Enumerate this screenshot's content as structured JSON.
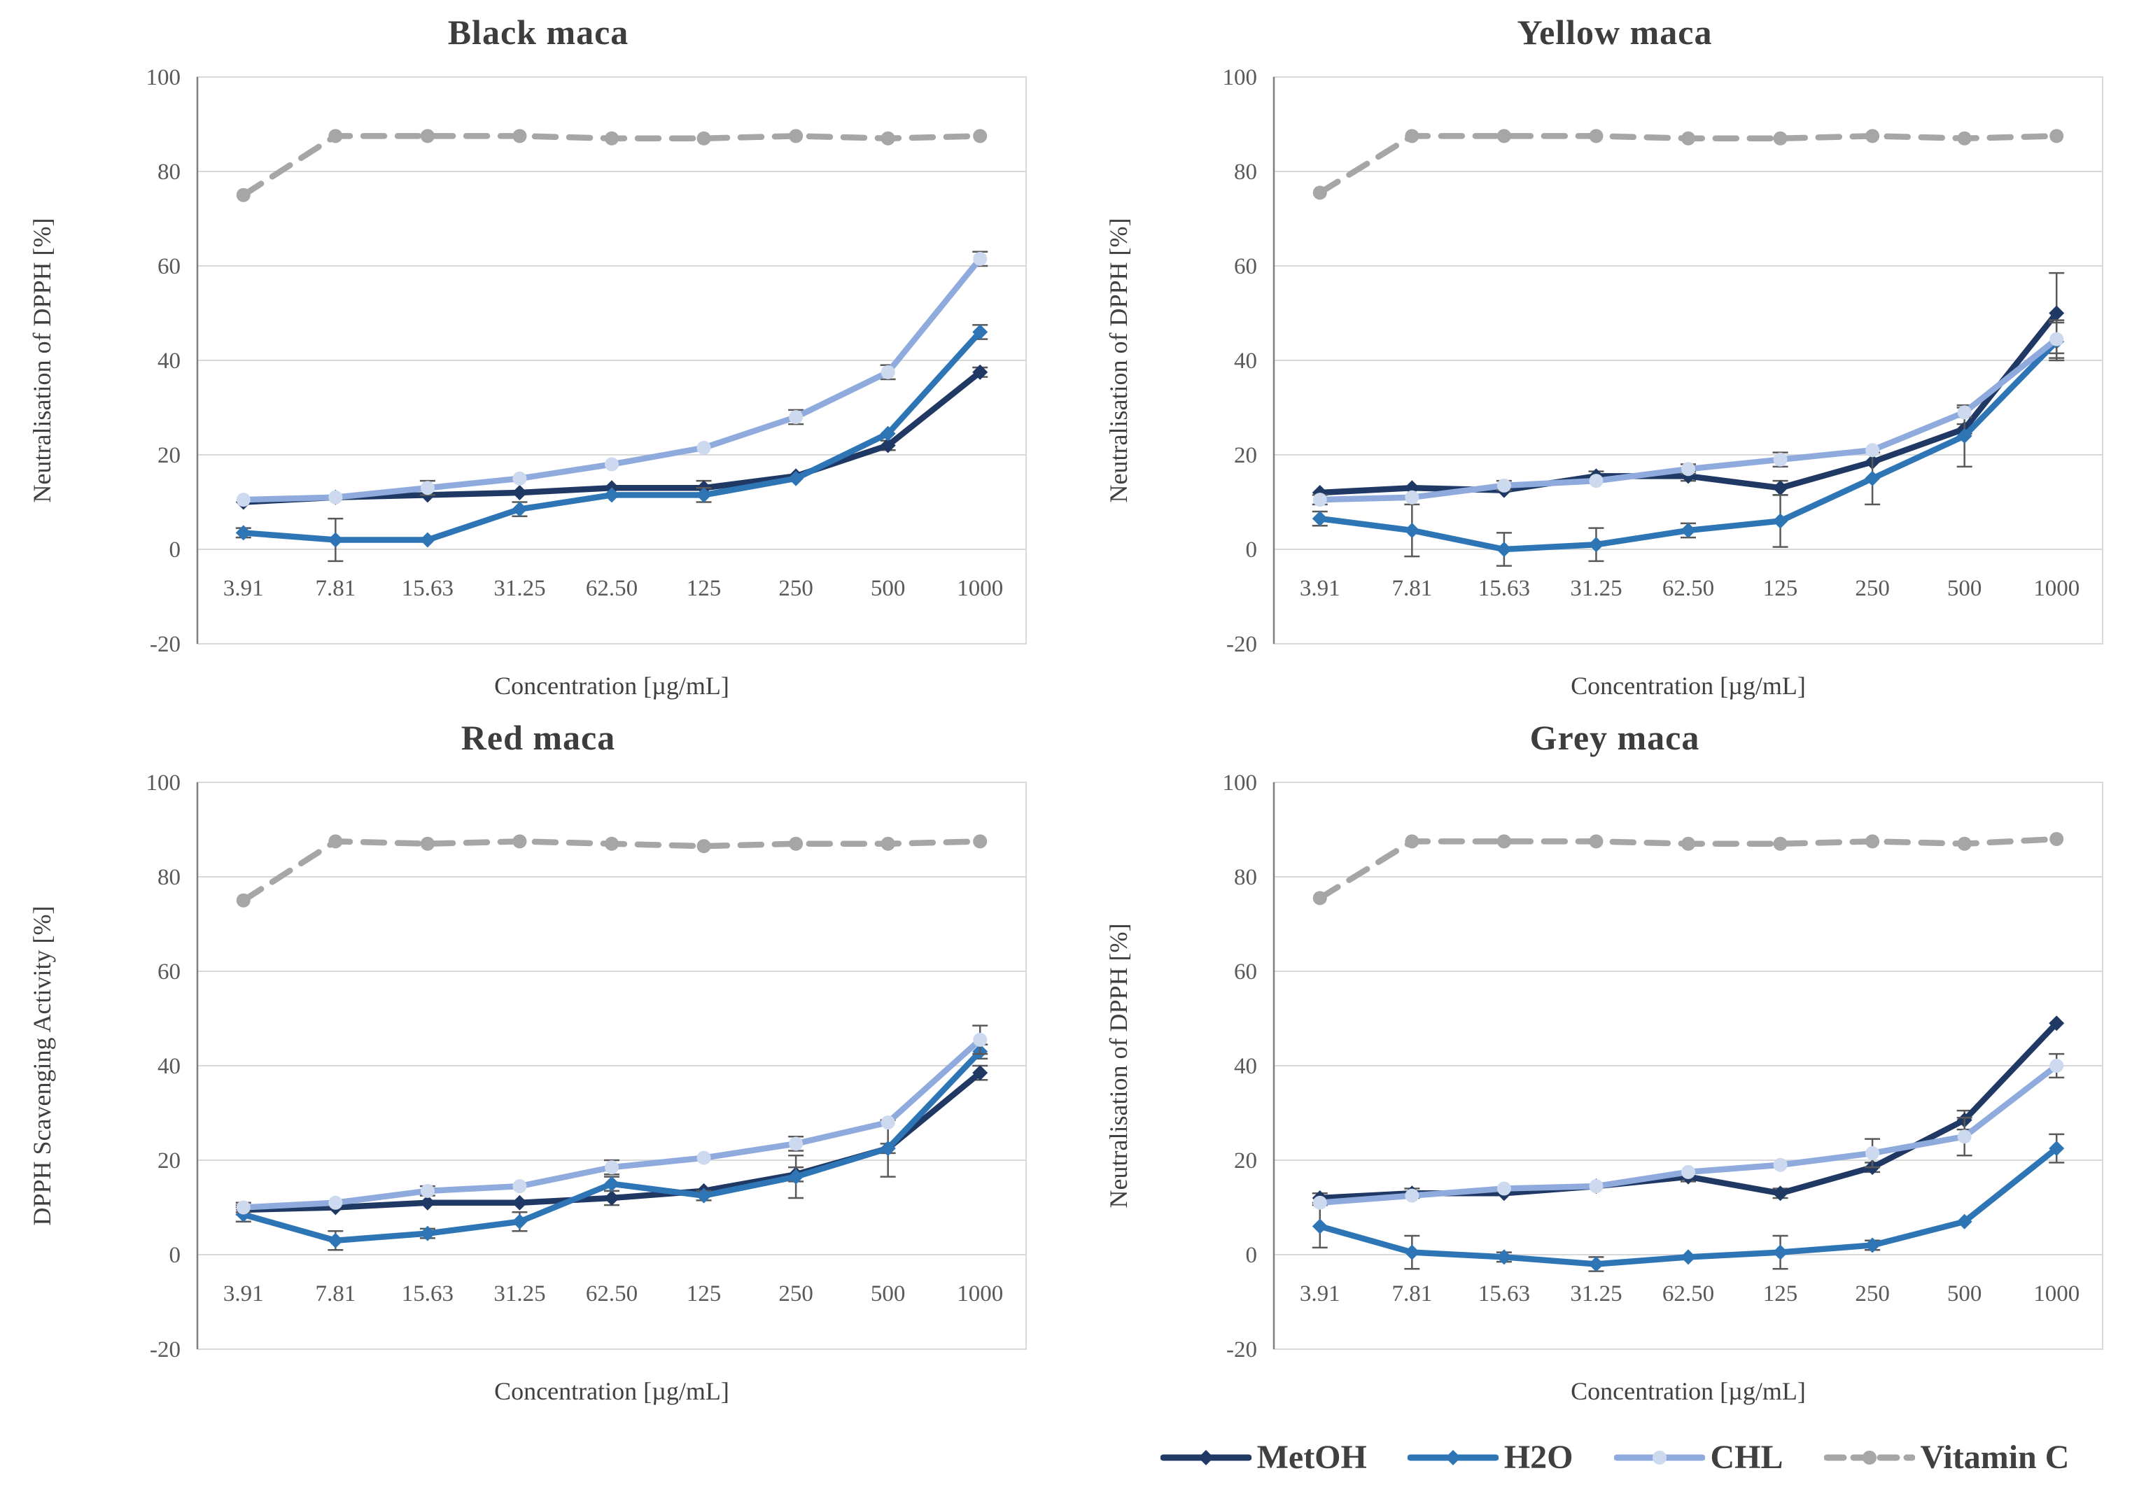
{
  "figure": {
    "background": "#ffffff",
    "shared_x_label": "Concentration [µg/mL]",
    "concentrations": [
      "3.91",
      "7.81",
      "15.63",
      "31.25",
      "62.50",
      "125",
      "250",
      "500",
      "1000"
    ]
  },
  "colors": {
    "metoh": "#1f3864",
    "h2o": "#2e75b6",
    "chl": "#8faadc",
    "chl_marker": "#cdd9ee",
    "vitamin_c": "#a6a6a6",
    "gridline": "#d9d9d9",
    "axis_line": "#7f7f7f",
    "tick_text": "#595959",
    "label_text": "#404040",
    "error_bar": "#595959"
  },
  "legend": {
    "items": [
      {
        "label": "MetOH",
        "color": "#1f3864",
        "dashed": false,
        "marker": "diamond"
      },
      {
        "label": "H2O",
        "color": "#2e75b6",
        "dashed": false,
        "marker": "diamond"
      },
      {
        "label": "CHL",
        "color": "#8faadc",
        "dashed": false,
        "marker": "circle"
      },
      {
        "label": "Vitamin C",
        "color": "#a6a6a6",
        "dashed": true,
        "marker": "circle"
      }
    ]
  },
  "chart_data": [
    {
      "id": "black-maca",
      "type": "line",
      "title": "Black maca",
      "xlabel": "Concentration [µg/mL]",
      "ylabel": "Neutralisation of DPPH [%]",
      "categories": [
        "3.91",
        "7.81",
        "15.63",
        "31.25",
        "62.50",
        "125",
        "250",
        "500",
        "1000"
      ],
      "ylim": [
        -20,
        100
      ],
      "yticks": [
        100,
        80,
        60,
        40,
        20,
        0,
        -20
      ],
      "grid": true,
      "series": [
        {
          "name": "MetOH",
          "color": "#1f3864",
          "marker": "diamond",
          "dashed": false,
          "values": [
            10,
            11,
            11.5,
            12,
            13,
            13,
            15.5,
            22,
            37.5
          ],
          "errors": [
            0.5,
            0.5,
            0.5,
            0.5,
            0.5,
            1.5,
            0.5,
            1,
            1
          ]
        },
        {
          "name": "H2O",
          "color": "#2e75b6",
          "marker": "diamond",
          "dashed": false,
          "values": [
            3.5,
            2,
            2,
            8.5,
            11.5,
            11.5,
            15,
            24.5,
            46
          ],
          "errors": [
            1,
            4.5,
            0.5,
            1.5,
            0.5,
            1.5,
            0.5,
            0.5,
            1.5
          ]
        },
        {
          "name": "CHL",
          "color": "#8faadc",
          "marker": "circle",
          "dashed": false,
          "values": [
            10.5,
            11,
            13,
            15,
            18,
            21.5,
            28,
            37.5,
            61.5
          ],
          "errors": [
            0.5,
            0.5,
            1.5,
            0.5,
            0.5,
            0.5,
            1.5,
            1.5,
            1.5
          ]
        },
        {
          "name": "Vitamin C",
          "color": "#a6a6a6",
          "marker": "circle",
          "dashed": true,
          "values": [
            75,
            87.5,
            87.5,
            87.5,
            87,
            87,
            87.5,
            87,
            87.5
          ],
          "errors": null
        }
      ]
    },
    {
      "id": "yellow-maca",
      "type": "line",
      "title": "Yellow maca",
      "xlabel": "Concentration [µg/mL]",
      "ylabel": "Neutralisation of DPPH [%]",
      "categories": [
        "3.91",
        "7.81",
        "15.63",
        "31.25",
        "62.50",
        "125",
        "250",
        "500",
        "1000"
      ],
      "ylim": [
        -20,
        100
      ],
      "yticks": [
        100,
        80,
        60,
        40,
        20,
        0,
        -20
      ],
      "grid": true,
      "series": [
        {
          "name": "MetOH",
          "color": "#1f3864",
          "marker": "diamond",
          "dashed": false,
          "values": [
            12,
            13,
            12.5,
            15.5,
            15.5,
            13,
            18.5,
            25.5,
            50
          ],
          "errors": [
            0.5,
            0.5,
            0.5,
            1,
            1,
            1.5,
            0.5,
            1,
            8.5
          ]
        },
        {
          "name": "H2O",
          "color": "#2e75b6",
          "marker": "diamond",
          "dashed": false,
          "values": [
            6.5,
            4,
            0,
            1,
            4,
            6,
            15,
            24,
            44
          ],
          "errors": [
            1.5,
            5.5,
            3.5,
            3.5,
            1.5,
            5.5,
            5.5,
            6.5,
            4
          ]
        },
        {
          "name": "CHL",
          "color": "#8faadc",
          "marker": "circle",
          "dashed": false,
          "values": [
            10.5,
            11,
            13.5,
            14.5,
            17,
            19,
            21,
            29,
            44.5
          ],
          "errors": [
            1,
            0.5,
            1,
            0.5,
            1,
            1.5,
            0.5,
            1,
            4
          ]
        },
        {
          "name": "Vitamin C",
          "color": "#a6a6a6",
          "marker": "circle",
          "dashed": true,
          "values": [
            75.5,
            87.5,
            87.5,
            87.5,
            87,
            87,
            87.5,
            87,
            87.5
          ],
          "errors": null
        }
      ]
    },
    {
      "id": "red-maca",
      "type": "line",
      "title": "Red maca",
      "xlabel": "Concentration [µg/mL]",
      "ylabel": "DPPH Scavenging Activity  [%]",
      "categories": [
        "3.91",
        "7.81",
        "15.63",
        "31.25",
        "62.50",
        "125",
        "250",
        "500",
        "1000"
      ],
      "ylim": [
        -20,
        100
      ],
      "yticks": [
        100,
        80,
        60,
        40,
        20,
        0,
        -20
      ],
      "grid": true,
      "series": [
        {
          "name": "MetOH",
          "color": "#1f3864",
          "marker": "diamond",
          "dashed": false,
          "values": [
            9.5,
            10,
            11,
            11,
            12,
            13.5,
            17,
            22.5,
            38.5
          ],
          "errors": [
            1,
            0.5,
            0.5,
            0.5,
            1.5,
            0.5,
            1.5,
            1,
            1.5
          ]
        },
        {
          "name": "H2O",
          "color": "#2e75b6",
          "marker": "diamond",
          "dashed": false,
          "values": [
            8.5,
            3,
            4.5,
            7,
            15,
            12.5,
            16.5,
            22.5,
            43
          ],
          "errors": [
            1.5,
            2,
            1,
            2,
            1.5,
            1,
            4.5,
            6,
            1.5
          ]
        },
        {
          "name": "CHL",
          "color": "#8faadc",
          "marker": "circle",
          "dashed": false,
          "values": [
            10,
            11,
            13.5,
            14.5,
            18.5,
            20.5,
            23.5,
            28,
            45.5
          ],
          "errors": [
            1,
            0.5,
            1,
            0.5,
            1.5,
            0.5,
            1.5,
            0.5,
            3
          ]
        },
        {
          "name": "Vitamin C",
          "color": "#a6a6a6",
          "marker": "circle",
          "dashed": true,
          "values": [
            75,
            87.5,
            87,
            87.5,
            87,
            86.5,
            87,
            87,
            87.5
          ],
          "errors": null
        }
      ]
    },
    {
      "id": "grey-maca",
      "type": "line",
      "title": "Grey maca",
      "xlabel": "Concentration [µg/mL]",
      "ylabel": "Neutralisation of DPPH [%]",
      "categories": [
        "3.91",
        "7.81",
        "15.63",
        "31.25",
        "62.50",
        "125",
        "250",
        "500",
        "1000"
      ],
      "ylim": [
        -20,
        100
      ],
      "yticks": [
        100,
        80,
        60,
        40,
        20,
        0,
        -20
      ],
      "grid": true,
      "series": [
        {
          "name": "MetOH",
          "color": "#1f3864",
          "marker": "diamond",
          "dashed": false,
          "values": [
            12,
            13,
            13,
            14.5,
            16.5,
            13,
            18.5,
            28.5,
            49
          ],
          "errors": [
            1,
            1,
            0.5,
            0.5,
            1,
            1,
            1,
            2,
            0.5
          ]
        },
        {
          "name": "H2O",
          "color": "#2e75b6",
          "marker": "diamond",
          "dashed": false,
          "values": [
            6,
            0.5,
            -0.5,
            -2,
            -0.5,
            0.5,
            2,
            7,
            22.5
          ],
          "errors": [
            4.5,
            3.5,
            1,
            1.5,
            0.5,
            3.5,
            1,
            0.5,
            3
          ]
        },
        {
          "name": "CHL",
          "color": "#8faadc",
          "marker": "circle",
          "dashed": false,
          "values": [
            11,
            12.5,
            14,
            14.5,
            17.5,
            19,
            21.5,
            25,
            40
          ],
          "errors": [
            0.5,
            0.5,
            0.5,
            0.5,
            0.5,
            0.5,
            3,
            4,
            2.5
          ]
        },
        {
          "name": "Vitamin C",
          "color": "#a6a6a6",
          "marker": "circle",
          "dashed": true,
          "values": [
            75.5,
            87.5,
            87.5,
            87.5,
            87,
            87,
            87.5,
            87,
            88
          ],
          "errors": null
        }
      ]
    }
  ]
}
